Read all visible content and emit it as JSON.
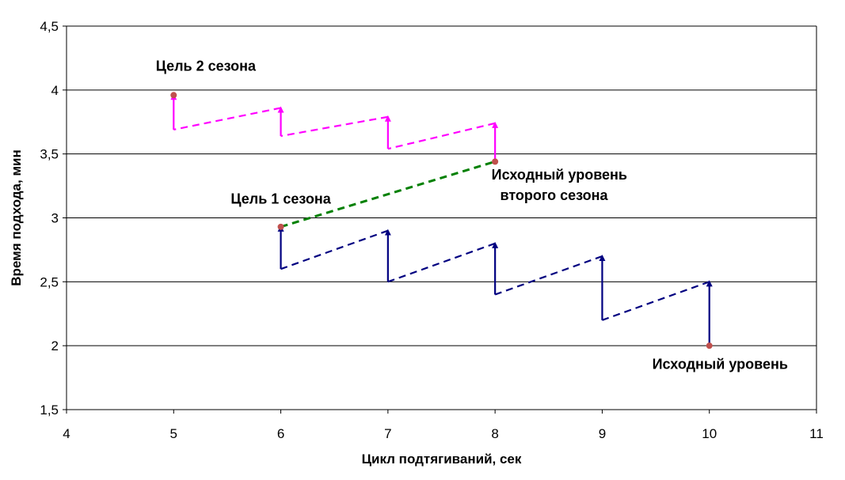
{
  "chart_data": {
    "type": "line",
    "title": "",
    "xlabel": "Цикл подтягиваний, сек",
    "ylabel": "Время подхода, мин",
    "xlim": [
      4,
      11
    ],
    "ylim": [
      1.5,
      4.5
    ],
    "xticks": [
      4,
      5,
      6,
      7,
      8,
      9,
      10,
      11
    ],
    "xtick_labels": [
      "4",
      "5",
      "6",
      "7",
      "8",
      "9",
      "10",
      "11"
    ],
    "yticks": [
      1.5,
      2,
      2.5,
      3,
      3.5,
      4,
      4.5
    ],
    "ytick_labels": [
      "1,5",
      "2",
      "2,5",
      "3",
      "3,5",
      "4",
      "4,5"
    ],
    "grid": "horizontal",
    "legend": "none",
    "series": [
      {
        "color": "#000080",
        "style": "dashed-with-up-arrows",
        "points": [
          [
            10,
            2.0
          ],
          [
            10,
            2.5
          ],
          [
            9,
            2.2
          ],
          [
            9,
            2.7
          ],
          [
            8,
            2.4
          ],
          [
            8,
            2.8
          ],
          [
            7,
            2.5
          ],
          [
            7,
            2.9
          ],
          [
            6,
            2.6
          ],
          [
            6,
            2.93
          ]
        ]
      },
      {
        "color": "#FF00FF",
        "style": "dashed-with-up-arrows",
        "points": [
          [
            8,
            3.44
          ],
          [
            8,
            3.74
          ],
          [
            7,
            3.54
          ],
          [
            7,
            3.79
          ],
          [
            6,
            3.64
          ],
          [
            6,
            3.86
          ],
          [
            5,
            3.69
          ],
          [
            5,
            3.96
          ]
        ]
      },
      {
        "color": "#008000",
        "style": "dashed",
        "points": [
          [
            6,
            2.93
          ],
          [
            8,
            3.44
          ]
        ]
      }
    ],
    "markers": {
      "color": "#C0504D",
      "points": [
        [
          10,
          2.0
        ],
        [
          6,
          2.93
        ],
        [
          8,
          3.44
        ],
        [
          5,
          3.96
        ]
      ]
    },
    "annotations": [
      {
        "text": "Цель 2 сезона",
        "x": 5.3,
        "y": 4.15
      },
      {
        "text": "Цель 1 сезона",
        "x": 6.0,
        "y": 3.11
      },
      {
        "text": "Исходный уровень",
        "x": 8.6,
        "y": 3.3
      },
      {
        "text": "второго сезона",
        "x": 8.55,
        "y": 3.14
      },
      {
        "text": "Исходный уровень",
        "x": 10.1,
        "y": 1.82
      }
    ]
  }
}
